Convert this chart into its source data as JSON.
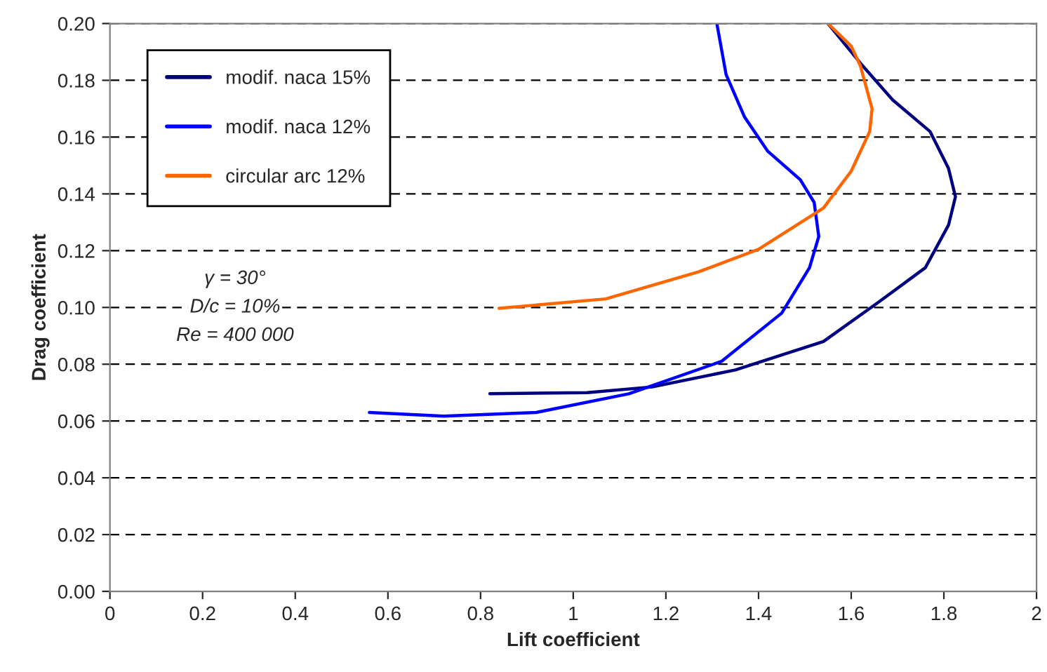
{
  "chart_data": {
    "type": "line",
    "xlabel": "Lift coefficient",
    "ylabel": "Drag coefficient",
    "xlim": [
      0,
      2
    ],
    "ylim": [
      0,
      0.2
    ],
    "xticks": [
      0,
      {
        "value": 0.2,
        "label": "0.2"
      },
      {
        "value": 0.4,
        "label": "0.4"
      },
      {
        "value": 0.6,
        "label": "0.6"
      },
      {
        "value": 0.8,
        "label": "0.8"
      },
      1,
      {
        "value": 1.2,
        "label": "1.2"
      },
      {
        "value": 1.4,
        "label": "1.4"
      },
      {
        "value": 1.6,
        "label": "1.6"
      },
      {
        "value": 1.8,
        "label": "1.8"
      },
      2
    ],
    "yticks": [
      {
        "value": 0,
        "label": "0.00"
      },
      {
        "value": 0.02,
        "label": "0.02"
      },
      {
        "value": 0.04,
        "label": "0.04"
      },
      {
        "value": 0.06,
        "label": "0.06"
      },
      {
        "value": 0.08,
        "label": "0.08"
      },
      {
        "value": 0.1,
        "label": "0.10"
      },
      {
        "value": 0.12,
        "label": "0.12"
      },
      {
        "value": 0.14,
        "label": "0.14"
      },
      {
        "value": 0.16,
        "label": "0.16"
      },
      {
        "value": 0.18,
        "label": "0.18"
      },
      {
        "value": 0.2,
        "label": "0.20"
      }
    ],
    "grid": "y",
    "legend": "top left",
    "marker": "none",
    "line_style": "solid",
    "series": [
      {
        "name": "modif. naca 15%",
        "color": "#000080",
        "x": [
          0.82,
          1.03,
          1.17,
          1.35,
          1.54,
          1.66,
          1.76,
          1.81,
          1.825,
          1.81,
          1.77,
          1.69,
          1.62,
          1.55
        ],
        "values": [
          0.0696,
          0.07,
          0.072,
          0.078,
          0.088,
          0.102,
          0.114,
          0.129,
          0.139,
          0.149,
          0.162,
          0.173,
          0.186,
          0.2
        ]
      },
      {
        "name": "modif. naca 12%",
        "color": "#0000ff",
        "x": [
          0.56,
          0.72,
          0.92,
          1.12,
          1.32,
          1.45,
          1.51,
          1.53,
          1.52,
          1.49,
          1.42,
          1.37,
          1.33,
          1.31
        ],
        "values": [
          0.063,
          0.0617,
          0.063,
          0.0696,
          0.081,
          0.098,
          0.114,
          0.125,
          0.137,
          0.145,
          0.155,
          0.167,
          0.182,
          0.2
        ]
      },
      {
        "name": "circular arc 12%",
        "color": "#ff6600",
        "x": [
          0.84,
          1.07,
          1.27,
          1.4,
          1.54,
          1.6,
          1.64,
          1.645,
          1.62,
          1.6,
          1.55
        ],
        "values": [
          0.0997,
          0.103,
          0.1125,
          0.1205,
          0.135,
          0.148,
          0.162,
          0.17,
          0.185,
          0.192,
          0.2
        ]
      }
    ],
    "annotations": [
      "γ = 30°",
      "D/c = 10%",
      "Re = 400 000"
    ]
  }
}
